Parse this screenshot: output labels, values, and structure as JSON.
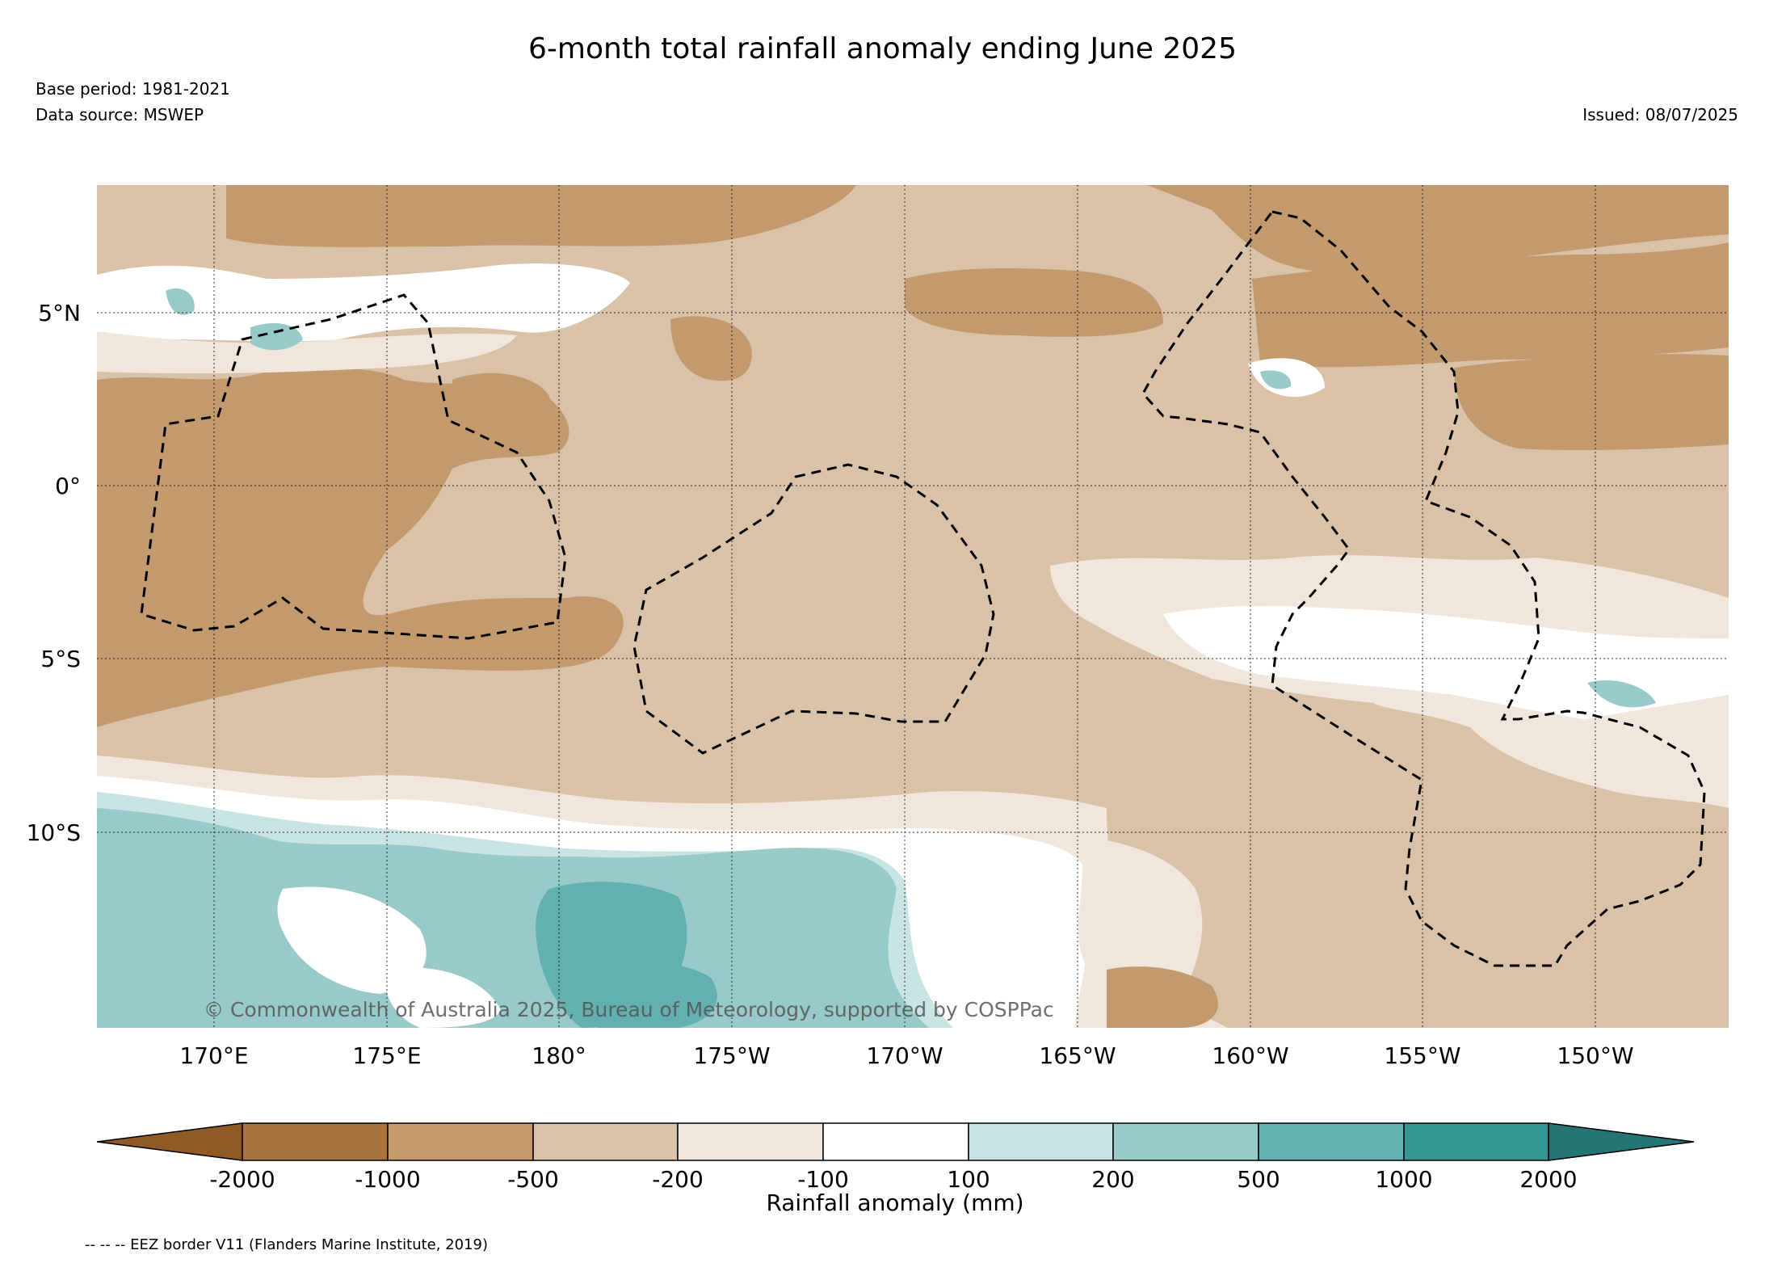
{
  "header": {
    "title": "6-month total rainfall anomaly ending June 2025",
    "base_period": "Base period: 1981-2021",
    "data_source": "Data source: MSWEP",
    "issued": "Issued: 08/07/2025"
  },
  "map": {
    "lat_labels": [
      "5°N",
      "0°",
      "5°S",
      "10°S"
    ],
    "lon_labels": [
      "170°E",
      "175°E",
      "180°",
      "175°W",
      "170°W",
      "165°W",
      "160°W",
      "155°W",
      "150°W"
    ],
    "copyright": "© Commonwealth of Australia 2025, Bureau of Meteorology, supported by COSPPac"
  },
  "colorbar": {
    "label": "Rainfall anomaly (mm)",
    "ticks": [
      "-2000",
      "-1000",
      "-500",
      "-200",
      "-100",
      "100",
      "200",
      "500",
      "1000",
      "2000"
    ],
    "colors": {
      "below_-2000": "#8f5a26",
      "-2000_-1000": "#a8723c",
      "-1000_-500": "#c39a6e",
      "-500_-200": "#dac2a8",
      "-200_-100": "#f0e6dc",
      "-100_100": "#ffffff",
      "100_200": "#c8e4e3",
      "200_500": "#98cac9",
      "500_1000": "#62b0b0",
      "1000_2000": "#359794",
      "above_2000": "#267575"
    }
  },
  "legend": {
    "eez": "-- -- -- EEZ border V11 (Flanders Marine Institute, 2019)"
  }
}
